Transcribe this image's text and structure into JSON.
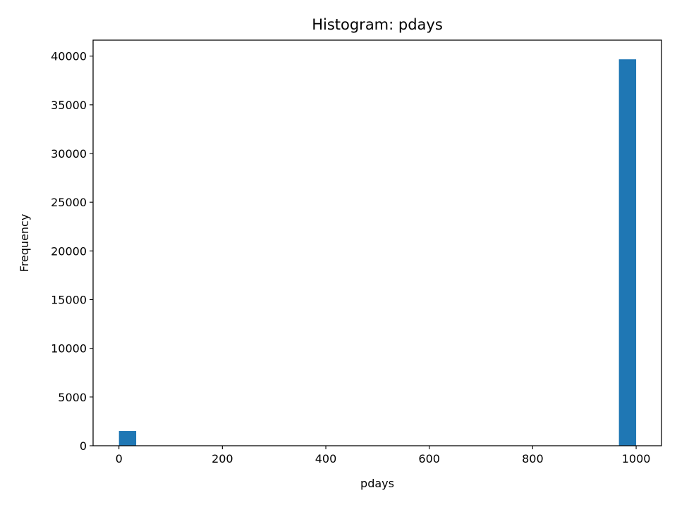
{
  "chart_data": {
    "type": "bar",
    "title": "Histogram: pdays",
    "xlabel": "pdays",
    "ylabel": "Frequency",
    "xlim": [
      -50,
      1049
    ],
    "ylim": [
      0,
      41640
    ],
    "x_ticks": [
      0,
      200,
      400,
      600,
      800,
      1000
    ],
    "y_ticks": [
      0,
      5000,
      10000,
      15000,
      20000,
      25000,
      30000,
      35000,
      40000
    ],
    "bin_width": 33.3,
    "bins": [
      {
        "start": 0,
        "end": 33.3,
        "count": 1515
      },
      {
        "start": 966.7,
        "end": 1000,
        "count": 39673
      }
    ],
    "bar_color": "#1f77b4",
    "grid": false,
    "legend": "none"
  }
}
